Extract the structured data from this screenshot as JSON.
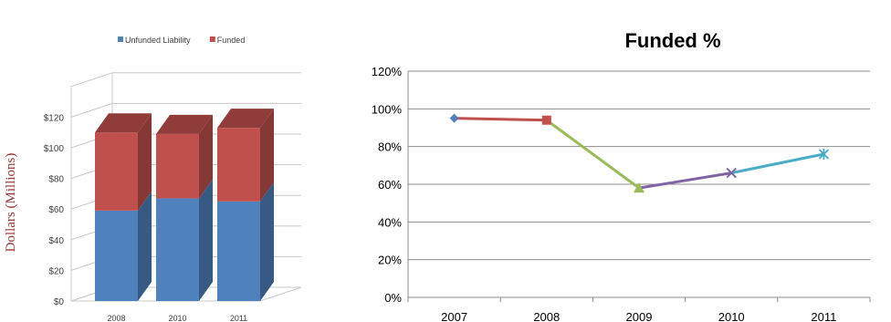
{
  "chart_data": [
    {
      "type": "bar",
      "stacked": true,
      "three_d": true,
      "categories": [
        "2008",
        "2010",
        "2011"
      ],
      "series": [
        {
          "name": "Unfunded Liability",
          "values": [
            59,
            67,
            65
          ],
          "color": "#4f81bd"
        },
        {
          "name": "Funded",
          "values": [
            51,
            42,
            48
          ],
          "color": "#c0504d"
        }
      ],
      "ylabel": "Dollars (Millions)",
      "yticks": [
        "$0",
        "$20",
        "$40",
        "$60",
        "$80",
        "$100",
        "$120"
      ],
      "ylim": [
        0,
        140
      ],
      "legend_position": "top",
      "grid": true
    },
    {
      "type": "line",
      "title": "Funded %",
      "categories": [
        "2007",
        "2008",
        "2009",
        "2010",
        "2011"
      ],
      "values": [
        95,
        94,
        58,
        66,
        76
      ],
      "segment_colors": [
        "#c0504d",
        "#9bbb59",
        "#8064a2",
        "#4bacc6"
      ],
      "point_colors": [
        "#4f81bd",
        "#c0504d",
        "#9bbb59",
        "#8064a2",
        "#4bacc6"
      ],
      "point_markers": [
        "diamond",
        "square",
        "triangle",
        "x",
        "star"
      ],
      "yticks": [
        "0%",
        "20%",
        "40%",
        "60%",
        "80%",
        "100%",
        "120%"
      ],
      "ylim": [
        0,
        120
      ],
      "grid": true
    }
  ]
}
